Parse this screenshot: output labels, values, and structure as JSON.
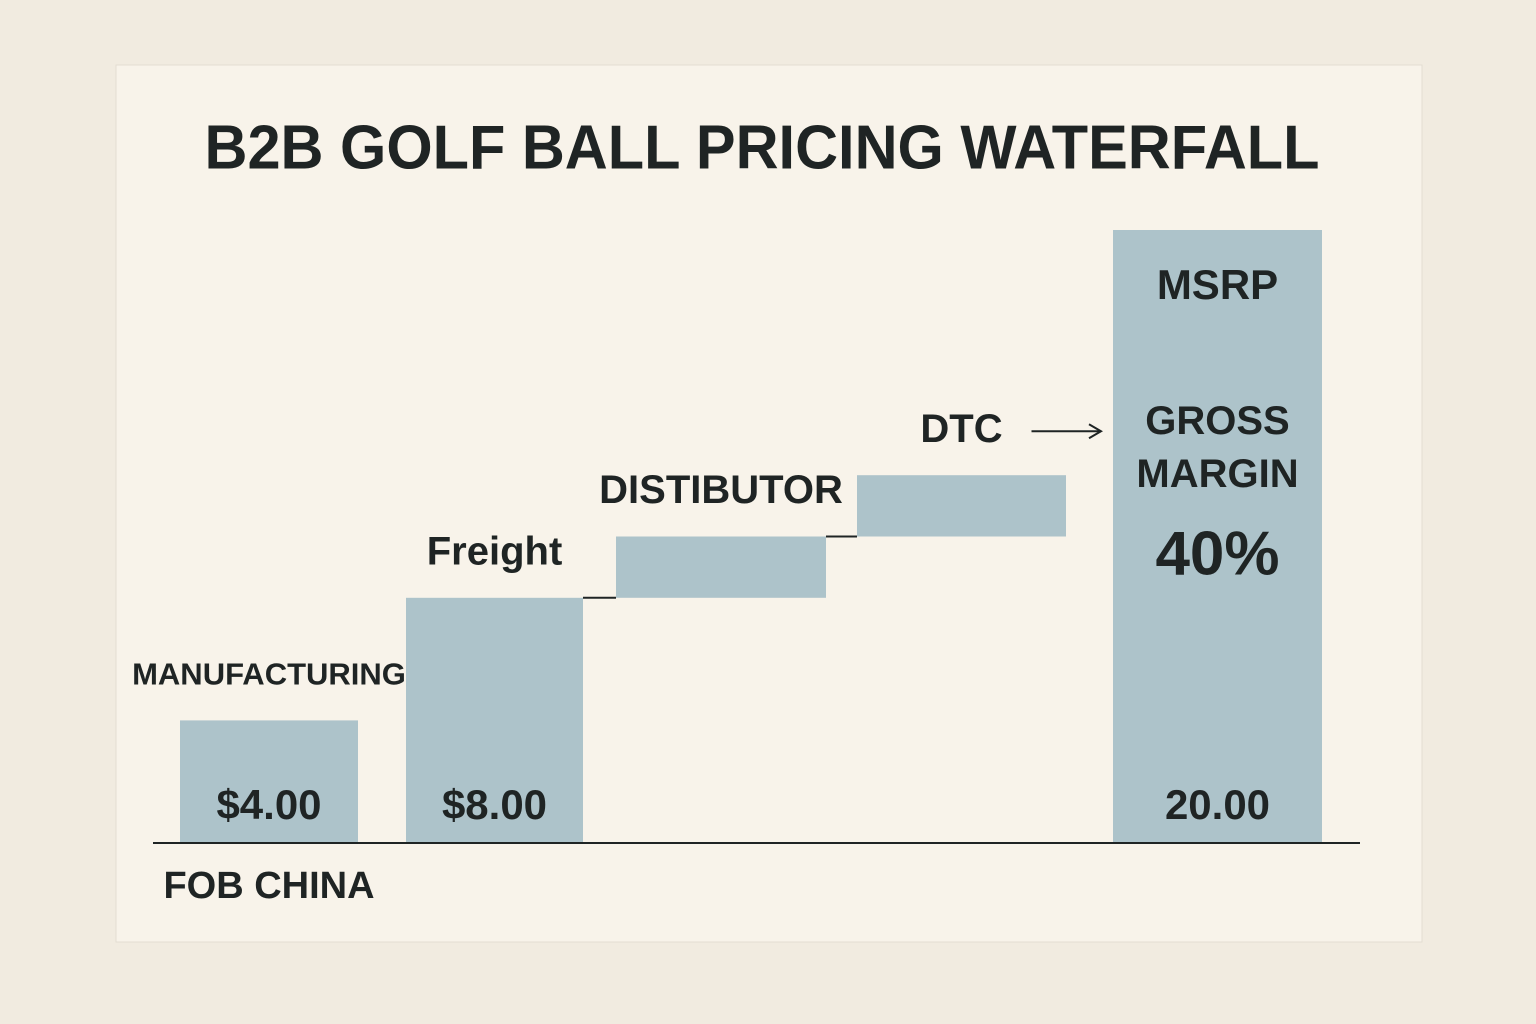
{
  "chart_data": {
    "type": "waterfall",
    "title": "B2B GOLF BALL PRICING WATERFALL",
    "categories": [
      "MANUFACTURING",
      "Freight",
      "DISTIBUTOR",
      "DTC",
      "MSRP"
    ],
    "values": [
      4,
      8,
      2,
      2,
      20
    ],
    "value_labels": [
      "$4.00",
      "$8.00",
      null,
      null,
      "20.00"
    ],
    "measure": [
      "absolute",
      "absolute",
      "relative",
      "relative",
      "absolute"
    ],
    "color": "#adc3ca",
    "baseline_note": "FOB CHINA",
    "gross_margin": {
      "label": "GROSS MARGIN",
      "value": 40,
      "value_label": "40%"
    }
  }
}
